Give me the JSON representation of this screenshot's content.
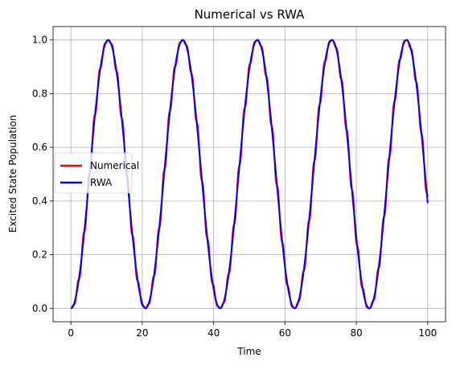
{
  "chart_data": {
    "type": "line",
    "title": "Numerical vs RWA",
    "xlabel": "Time",
    "ylabel": "Excited State Population",
    "xlim": [
      -5,
      105
    ],
    "ylim": [
      -0.05,
      1.05
    ],
    "xticks": [
      0,
      20,
      40,
      60,
      80,
      100
    ],
    "yticks": [
      0.0,
      0.2,
      0.4,
      0.6,
      0.8,
      1.0
    ],
    "xtick_labels": [
      "0",
      "20",
      "40",
      "60",
      "80",
      "100"
    ],
    "ytick_labels": [
      "0.0",
      "0.2",
      "0.4",
      "0.6",
      "0.8",
      "1.0"
    ],
    "grid": true,
    "legend_position": "center-left",
    "series": [
      {
        "name": "Numerical",
        "color": "#ff0000",
        "rabi_period": 20.9,
        "oscillation_amplitude": 0.03,
        "oscillation_period": 1.5,
        "x_range": [
          0,
          100
        ]
      },
      {
        "name": "RWA",
        "color": "#0000ff",
        "rabi_period": 20.9,
        "oscillation_amplitude": 0.0,
        "oscillation_period": 1.5,
        "x_range": [
          0,
          100
        ]
      }
    ]
  }
}
